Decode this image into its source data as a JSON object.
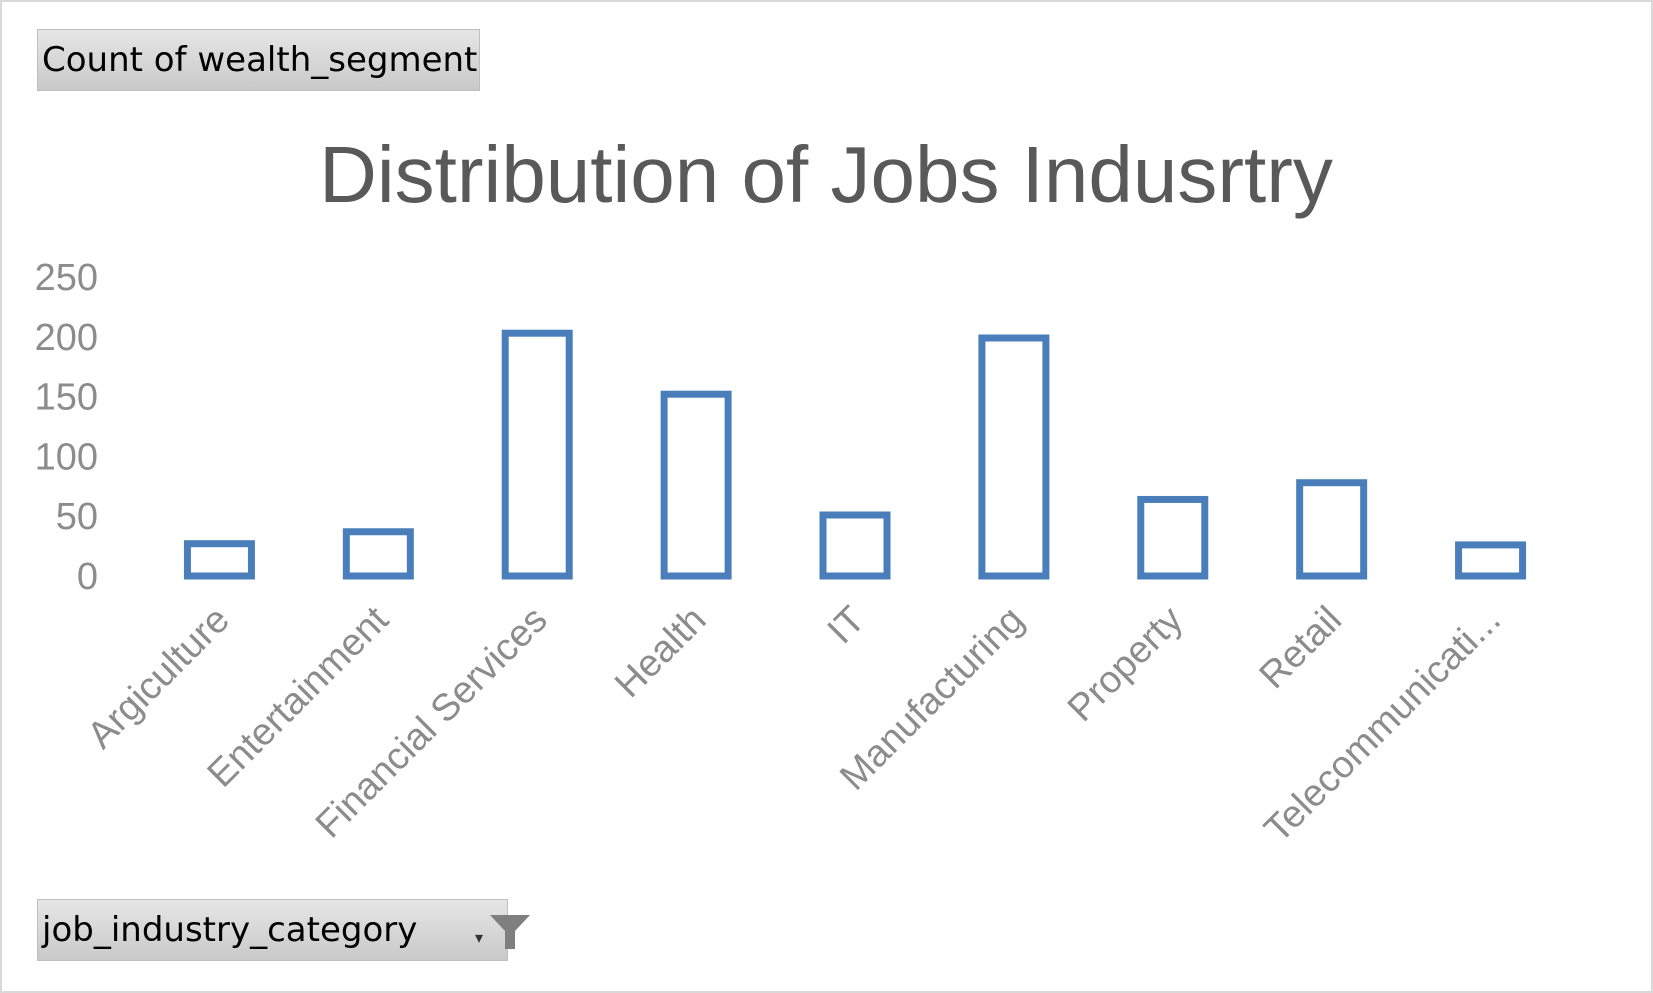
{
  "pivot": {
    "value_field_label": "Count of wealth_segment",
    "axis_field_label": "job_industry_category"
  },
  "icons": {
    "filter": "filter-icon",
    "dropdown": "dropdown-arrow-icon"
  },
  "chart_data": {
    "type": "bar",
    "title": "Distribution of Jobs Indusrtry",
    "xlabel": "",
    "ylabel": "",
    "categories": [
      "Argiculture",
      "Entertainment",
      "Financial Services",
      "Health",
      "IT",
      "Manufacturing",
      "Property",
      "Retail",
      "Telecommunicati..."
    ],
    "series": [
      {
        "values": [
          27,
          37,
          203,
          152,
          51,
          199,
          64,
          78,
          26
        ],
        "color": "#4a7ebb"
      }
    ],
    "ylim": [
      0,
      250
    ],
    "yticks": [
      0,
      50,
      100,
      150,
      200,
      250
    ],
    "grid": false,
    "legend": "none"
  }
}
